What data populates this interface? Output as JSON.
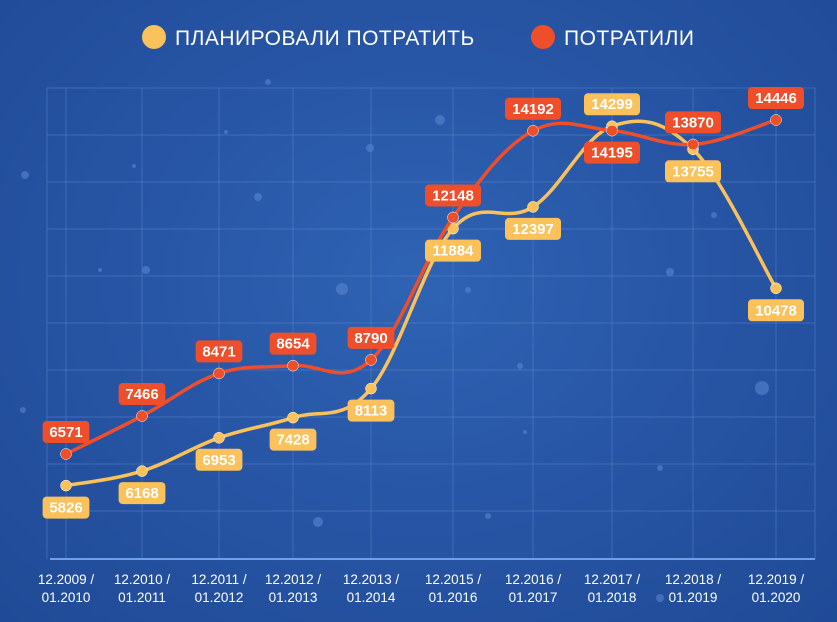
{
  "legend": {
    "planned_label": "ПЛАНИРОВАЛИ ПОТРАТИТЬ",
    "spent_label": "ПОТРАТИЛИ"
  },
  "colors": {
    "planned": "#fbc15a",
    "spent": "#ee4e2a",
    "grid": "#5f8bd0",
    "axis_line": "#6ea0e8",
    "tick_text": "#ffffff"
  },
  "chart_data": {
    "type": "line",
    "categories": [
      [
        "12.2009 /",
        "01.2010"
      ],
      [
        "12.2010 /",
        "01.2011"
      ],
      [
        "12.2011 /",
        "01.2012"
      ],
      [
        "12.2012 /",
        "01.2013"
      ],
      [
        "12.2013 /",
        "01.2014"
      ],
      [
        "12.2015 /",
        "01.2016"
      ],
      [
        "12.2016 /",
        "01.2017"
      ],
      [
        "12.2017 /",
        "01.2018"
      ],
      [
        "12.2018 /",
        "01.2019"
      ],
      [
        "12.2019 /",
        "01.2020"
      ]
    ],
    "series": [
      {
        "name": "ПЛАНИРОВАЛИ ПОТРАТИТЬ",
        "key": "planned",
        "values": [
          5826,
          6168,
          6953,
          7428,
          8113,
          11884,
          12397,
          14299,
          13755,
          10478
        ]
      },
      {
        "name": "ПОТРАТИЛИ",
        "key": "spent",
        "values": [
          6571,
          7466,
          8471,
          8654,
          8790,
          12148,
          14192,
          14195,
          13870,
          14446
        ]
      }
    ],
    "grid": true,
    "legend_position": "top"
  }
}
